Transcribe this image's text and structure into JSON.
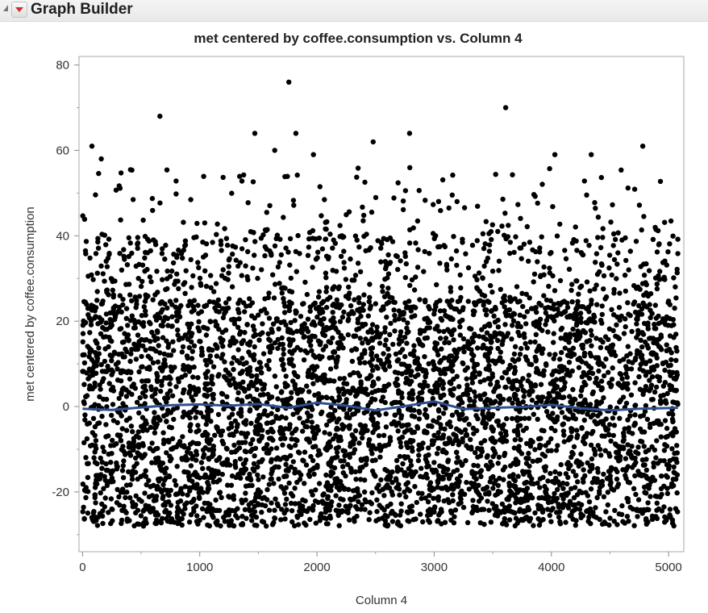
{
  "window": {
    "title": "Graph Builder"
  },
  "colors": {
    "points": "#000000",
    "smoother": "#2e4f8f",
    "frame": "#a8a8a8",
    "background": "#ffffff"
  },
  "icons": {
    "outline_toggle": "disclosure-triangle-icon",
    "menu": "red-triangle-menu-icon"
  },
  "chart_data": {
    "type": "scatter",
    "title": "met centered by coffee.consumption vs. Column 4",
    "xlabel": "Column 4",
    "ylabel": "met centered by coffee.consumption",
    "xlim": [
      -30,
      5130
    ],
    "ylim": [
      -34,
      82
    ],
    "xticks": [
      0,
      1000,
      2000,
      3000,
      4000,
      5000
    ],
    "yticks": [
      -20,
      0,
      20,
      40,
      60,
      80
    ],
    "xtick_labels": [
      "0",
      "1000",
      "2000",
      "3000",
      "4000",
      "5000"
    ],
    "ytick_labels": [
      "-20",
      "0",
      "20",
      "40",
      "60",
      "80"
    ],
    "grid": false,
    "legend": "none",
    "point_count_estimate": 5100,
    "point_distribution": {
      "x_range": [
        0,
        5080
      ],
      "dense_y_range": [
        -25,
        25
      ],
      "lower_bound_approx": -28,
      "upper_tail_max": 76
    },
    "notable_points": [
      {
        "x": 80,
        "y": 61
      },
      {
        "x": 160,
        "y": 58
      },
      {
        "x": 660,
        "y": 68
      },
      {
        "x": 1470,
        "y": 64
      },
      {
        "x": 1640,
        "y": 60
      },
      {
        "x": 1760,
        "y": 76
      },
      {
        "x": 1820,
        "y": 64
      },
      {
        "x": 1970,
        "y": 59
      },
      {
        "x": 2480,
        "y": 62
      },
      {
        "x": 2790,
        "y": 64
      },
      {
        "x": 3610,
        "y": 70
      },
      {
        "x": 4030,
        "y": 59
      },
      {
        "x": 4340,
        "y": 59
      },
      {
        "x": 4780,
        "y": 61
      }
    ],
    "smoother_line": {
      "x": [
        0,
        250,
        500,
        750,
        1000,
        1250,
        1500,
        1750,
        2000,
        2250,
        2500,
        2750,
        3000,
        3250,
        3500,
        3750,
        4000,
        4250,
        4500,
        4750,
        5080
      ],
      "y": [
        -0.5,
        -0.8,
        -0.2,
        0.3,
        0.5,
        0.2,
        0.6,
        -0.3,
        0.9,
        0.2,
        -0.9,
        0.1,
        1.2,
        -0.6,
        -0.3,
        -0.1,
        0.4,
        -0.4,
        -0.9,
        -0.5,
        -0.3
      ]
    }
  }
}
